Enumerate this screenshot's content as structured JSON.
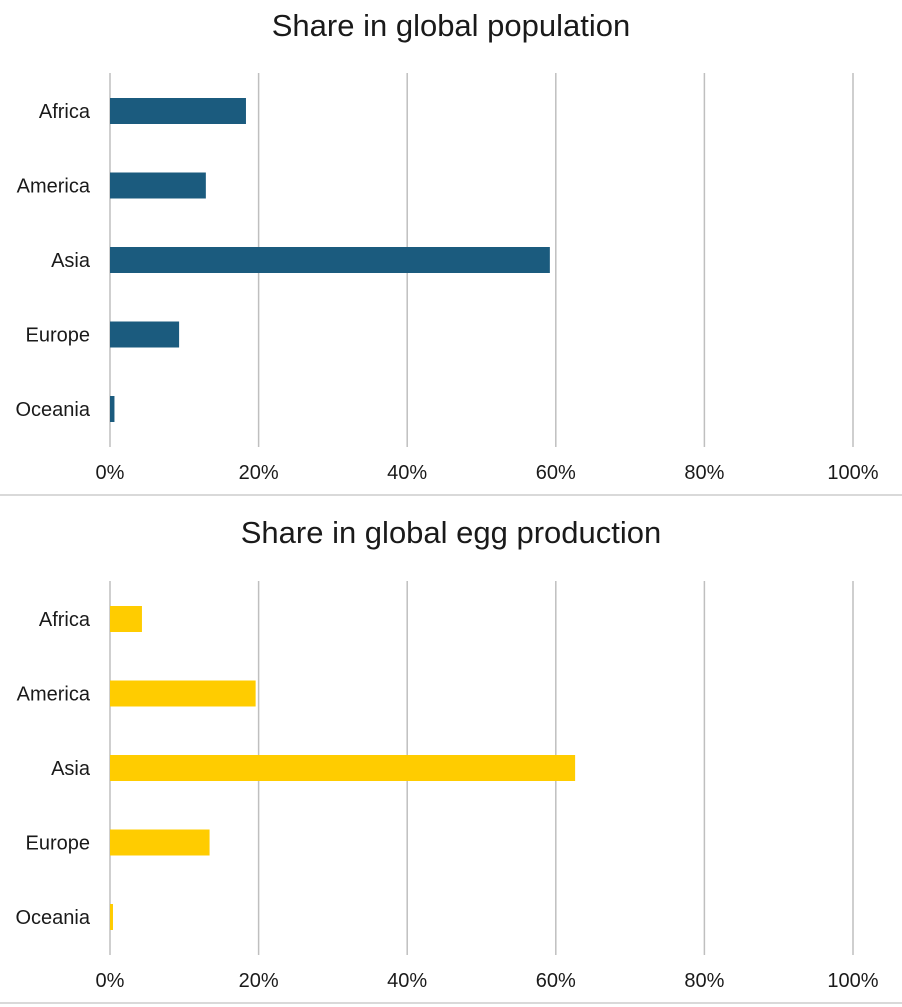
{
  "chart_data": [
    {
      "type": "bar",
      "orientation": "horizontal",
      "title": "Share in global population",
      "categories": [
        "Africa",
        "America",
        "Asia",
        "Europe",
        "Oceania"
      ],
      "values": [
        18.3,
        12.9,
        59.2,
        9.3,
        0.6
      ],
      "xlim": [
        0,
        100
      ],
      "xticks": [
        "0%",
        "20%",
        "40%",
        "60%",
        "80%",
        "100%"
      ],
      "xlabel": "",
      "ylabel": "",
      "grid": "vertical",
      "legend": "none",
      "color": "#1b5b7e"
    },
    {
      "type": "bar",
      "orientation": "horizontal",
      "title": "Share in global egg production",
      "categories": [
        "Africa",
        "America",
        "Asia",
        "Europe",
        "Oceania"
      ],
      "values": [
        4.3,
        19.6,
        62.6,
        13.4,
        0.4
      ],
      "xlim": [
        0,
        100
      ],
      "xticks": [
        "0%",
        "20%",
        "40%",
        "60%",
        "80%",
        "100%"
      ],
      "xlabel": "",
      "ylabel": "",
      "grid": "vertical",
      "legend": "none",
      "color": "#ffcc00"
    }
  ]
}
